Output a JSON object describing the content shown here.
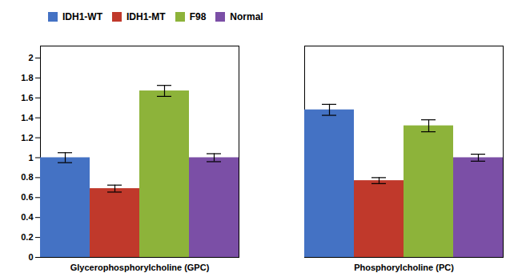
{
  "chart_data": {
    "type": "bar",
    "categories": [
      "Glycerophosphorylcholine (GPC)",
      "Phosphorylcholine (PC)"
    ],
    "series": [
      {
        "name": "IDH1-WT",
        "color": "#4472C4",
        "values": [
          1.0,
          1.48
        ],
        "errors": [
          0.05,
          0.055
        ]
      },
      {
        "name": "IDH1-MT",
        "color": "#C0392B",
        "values": [
          0.69,
          0.77
        ],
        "errors": [
          0.035,
          0.03
        ]
      },
      {
        "name": "F98",
        "color": "#8DB33A",
        "values": [
          1.67,
          1.32
        ],
        "errors": [
          0.055,
          0.06
        ]
      },
      {
        "name": "Normal",
        "color": "#7B4FA6",
        "values": [
          1.0,
          1.0
        ],
        "errors": [
          0.04,
          0.035
        ]
      }
    ],
    "ylim": [
      0,
      2.12
    ],
    "yticks": [
      0,
      0.2,
      0.4,
      0.6,
      0.8,
      1,
      1.2,
      1.4,
      1.6,
      1.8,
      2
    ],
    "grid": false,
    "legend": "top"
  }
}
